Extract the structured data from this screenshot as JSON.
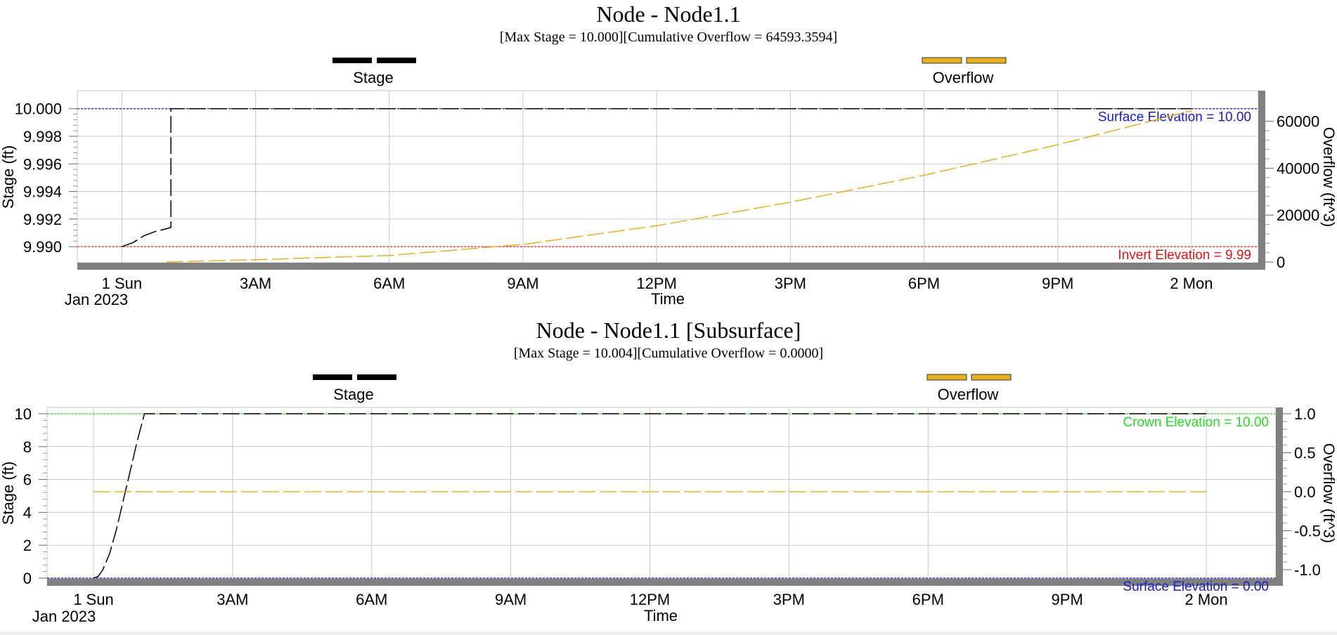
{
  "chart_data": [
    {
      "type": "line",
      "title": "Node - Node1.1",
      "subtitle": "[Max  Stage = 10.000][Cumulative Overflow = 64593.3594]",
      "xlabel": "Time",
      "x_ticks": [
        "1 Sun",
        "3AM",
        "6AM",
        "9AM",
        "12PM",
        "3PM",
        "6PM",
        "9PM",
        "2 Mon"
      ],
      "x_ticks_hours": [
        0,
        3,
        6,
        9,
        12,
        15,
        18,
        21,
        24
      ],
      "x_sublabel": "Jan 2023",
      "xlim_hours": [
        -1,
        25.5
      ],
      "ylabel": "Stage (ft)",
      "ylim": [
        9.9895,
        10.0008
      ],
      "y_ticks": [
        "9.990",
        "9.992",
        "9.994",
        "9.996",
        "9.998",
        "10.000"
      ],
      "y_tick_values": [
        9.99,
        9.992,
        9.994,
        9.996,
        9.998,
        10.0
      ],
      "y2label": "Overflow (ft^3)",
      "y2lim": [
        0,
        65000
      ],
      "y2_ticks": [
        "0",
        "20000",
        "40000",
        "60000"
      ],
      "y2_tick_values": [
        0,
        20000,
        40000,
        60000
      ],
      "grid": true,
      "legend_placement": "top",
      "series": [
        {
          "name": "Stage",
          "axis": "left",
          "color": "#000000",
          "style": "dashed",
          "x_hours": [
            0,
            0.25,
            0.5,
            0.75,
            1.0,
            1.1,
            1.1,
            24
          ],
          "values": [
            9.99,
            9.9903,
            9.9908,
            9.9911,
            9.9913,
            9.9914,
            10.0,
            10.0
          ]
        },
        {
          "name": "Overflow",
          "axis": "right",
          "color": "#e6b020",
          "style": "dashed",
          "x_hours": [
            1,
            3,
            6,
            9,
            12,
            15,
            18,
            21,
            24
          ],
          "values": [
            0,
            1000,
            2800,
            7500,
            15500,
            25500,
            37000,
            50000,
            64500
          ]
        }
      ],
      "reference_lines": [
        {
          "label": "Surface Elevation = 10.00",
          "value": 10.0,
          "color": "#1a1acc"
        },
        {
          "label": "Invert Elevation = 9.99",
          "value": 9.99,
          "color": "#ee1111"
        }
      ],
      "overlapping_label": "Crown"
    },
    {
      "type": "line",
      "title": "Node - Node1.1 [Subsurface]",
      "subtitle": "[Max  Stage = 10.004][Cumulative Overflow = 0.0000]",
      "xlabel": "Time",
      "x_ticks": [
        "1 Sun",
        "3AM",
        "6AM",
        "9AM",
        "12PM",
        "3PM",
        "6PM",
        "9PM",
        "2 Mon"
      ],
      "x_ticks_hours": [
        0,
        3,
        6,
        9,
        12,
        15,
        18,
        21,
        24
      ],
      "x_sublabel": "Jan 2023",
      "xlim_hours": [
        -1,
        25.5
      ],
      "ylabel": "Stage (ft)",
      "ylim": [
        0,
        10
      ],
      "y_ticks": [
        "0",
        "2",
        "4",
        "6",
        "8",
        "10"
      ],
      "y_tick_values": [
        0,
        2,
        4,
        6,
        8,
        10
      ],
      "y2label": "Overflow (ft^3)",
      "y2lim": [
        -1.0,
        1.0
      ],
      "y2_ticks": [
        "-1.0",
        "-0.5",
        "0.0",
        "0.5",
        "1.0"
      ],
      "y2_tick_values": [
        -1.0,
        -0.5,
        0.0,
        0.5,
        1.0
      ],
      "grid": true,
      "legend_placement": "top",
      "series": [
        {
          "name": "Stage",
          "axis": "left",
          "color": "#000000",
          "style": "dashed",
          "x_hours": [
            0,
            0.1,
            0.2,
            0.35,
            0.5,
            0.65,
            0.8,
            0.95,
            1.1,
            24
          ],
          "values": [
            0,
            0.1,
            0.5,
            1.5,
            3.0,
            4.8,
            6.6,
            8.4,
            10.0,
            10.0
          ]
        },
        {
          "name": "Overflow",
          "axis": "right",
          "color": "#e6b020",
          "style": "dashed",
          "x_hours": [
            0,
            24
          ],
          "values": [
            0.0,
            0.0
          ]
        }
      ],
      "reference_lines": [
        {
          "label": "Crown Elevation = 10.00",
          "value": 10.0,
          "color": "#22dd22"
        },
        {
          "label": "Surface Elevation = 0.00",
          "value": 0.0,
          "color": "#1a1acc"
        }
      ],
      "overlapping_label": "Invert"
    }
  ]
}
